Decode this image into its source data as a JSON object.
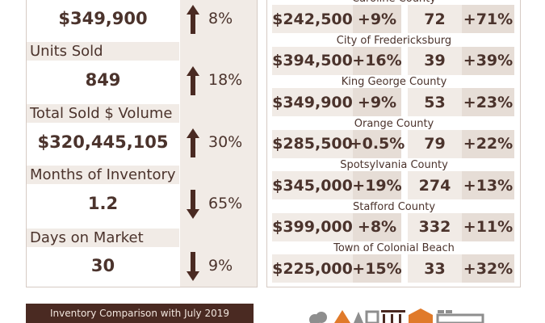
{
  "metrics": [
    {
      "value": "$349,900",
      "change": "8%",
      "direction": "up"
    },
    {
      "label": "Units Sold",
      "value": "849",
      "change": "18%",
      "direction": "up"
    },
    {
      "label": "Total Sold $ Volume",
      "value": "$320,445,105",
      "change": "30%",
      "direction": "up"
    },
    {
      "label": "Months of Inventory",
      "value": "1.2",
      "change": "65%",
      "direction": "down"
    },
    {
      "label": "Days on Market",
      "value": "30",
      "change": "9%",
      "direction": "down"
    }
  ],
  "areas": [
    {
      "name": "Caroline County",
      "price": "$242,500",
      "price_change": "+9%",
      "units": "72",
      "units_change": "+71%"
    },
    {
      "name": "City of Fredericksburg",
      "price": "$394,500",
      "price_change": "+16%",
      "units": "39",
      "units_change": "+39%"
    },
    {
      "name": "King George County",
      "price": "$349,900",
      "price_change": "+9%",
      "units": "53",
      "units_change": "+23%"
    },
    {
      "name": "Orange County",
      "price": "$285,500",
      "price_change": "+0.5%",
      "units": "79",
      "units_change": "+22%"
    },
    {
      "name": "Spotsylvania County",
      "price": "$345,000",
      "price_change": "+19%",
      "units": "274",
      "units_change": "+13%"
    },
    {
      "name": "Stafford County",
      "price": "$399,000",
      "price_change": "+8%",
      "units": "332",
      "units_change": "+11%"
    },
    {
      "name": "Town of Colonial Beach",
      "price": "$225,000",
      "price_change": "+15%",
      "units": "33",
      "units_change": "+32%"
    }
  ],
  "banner": "Inventory Comparison with July 2019"
}
